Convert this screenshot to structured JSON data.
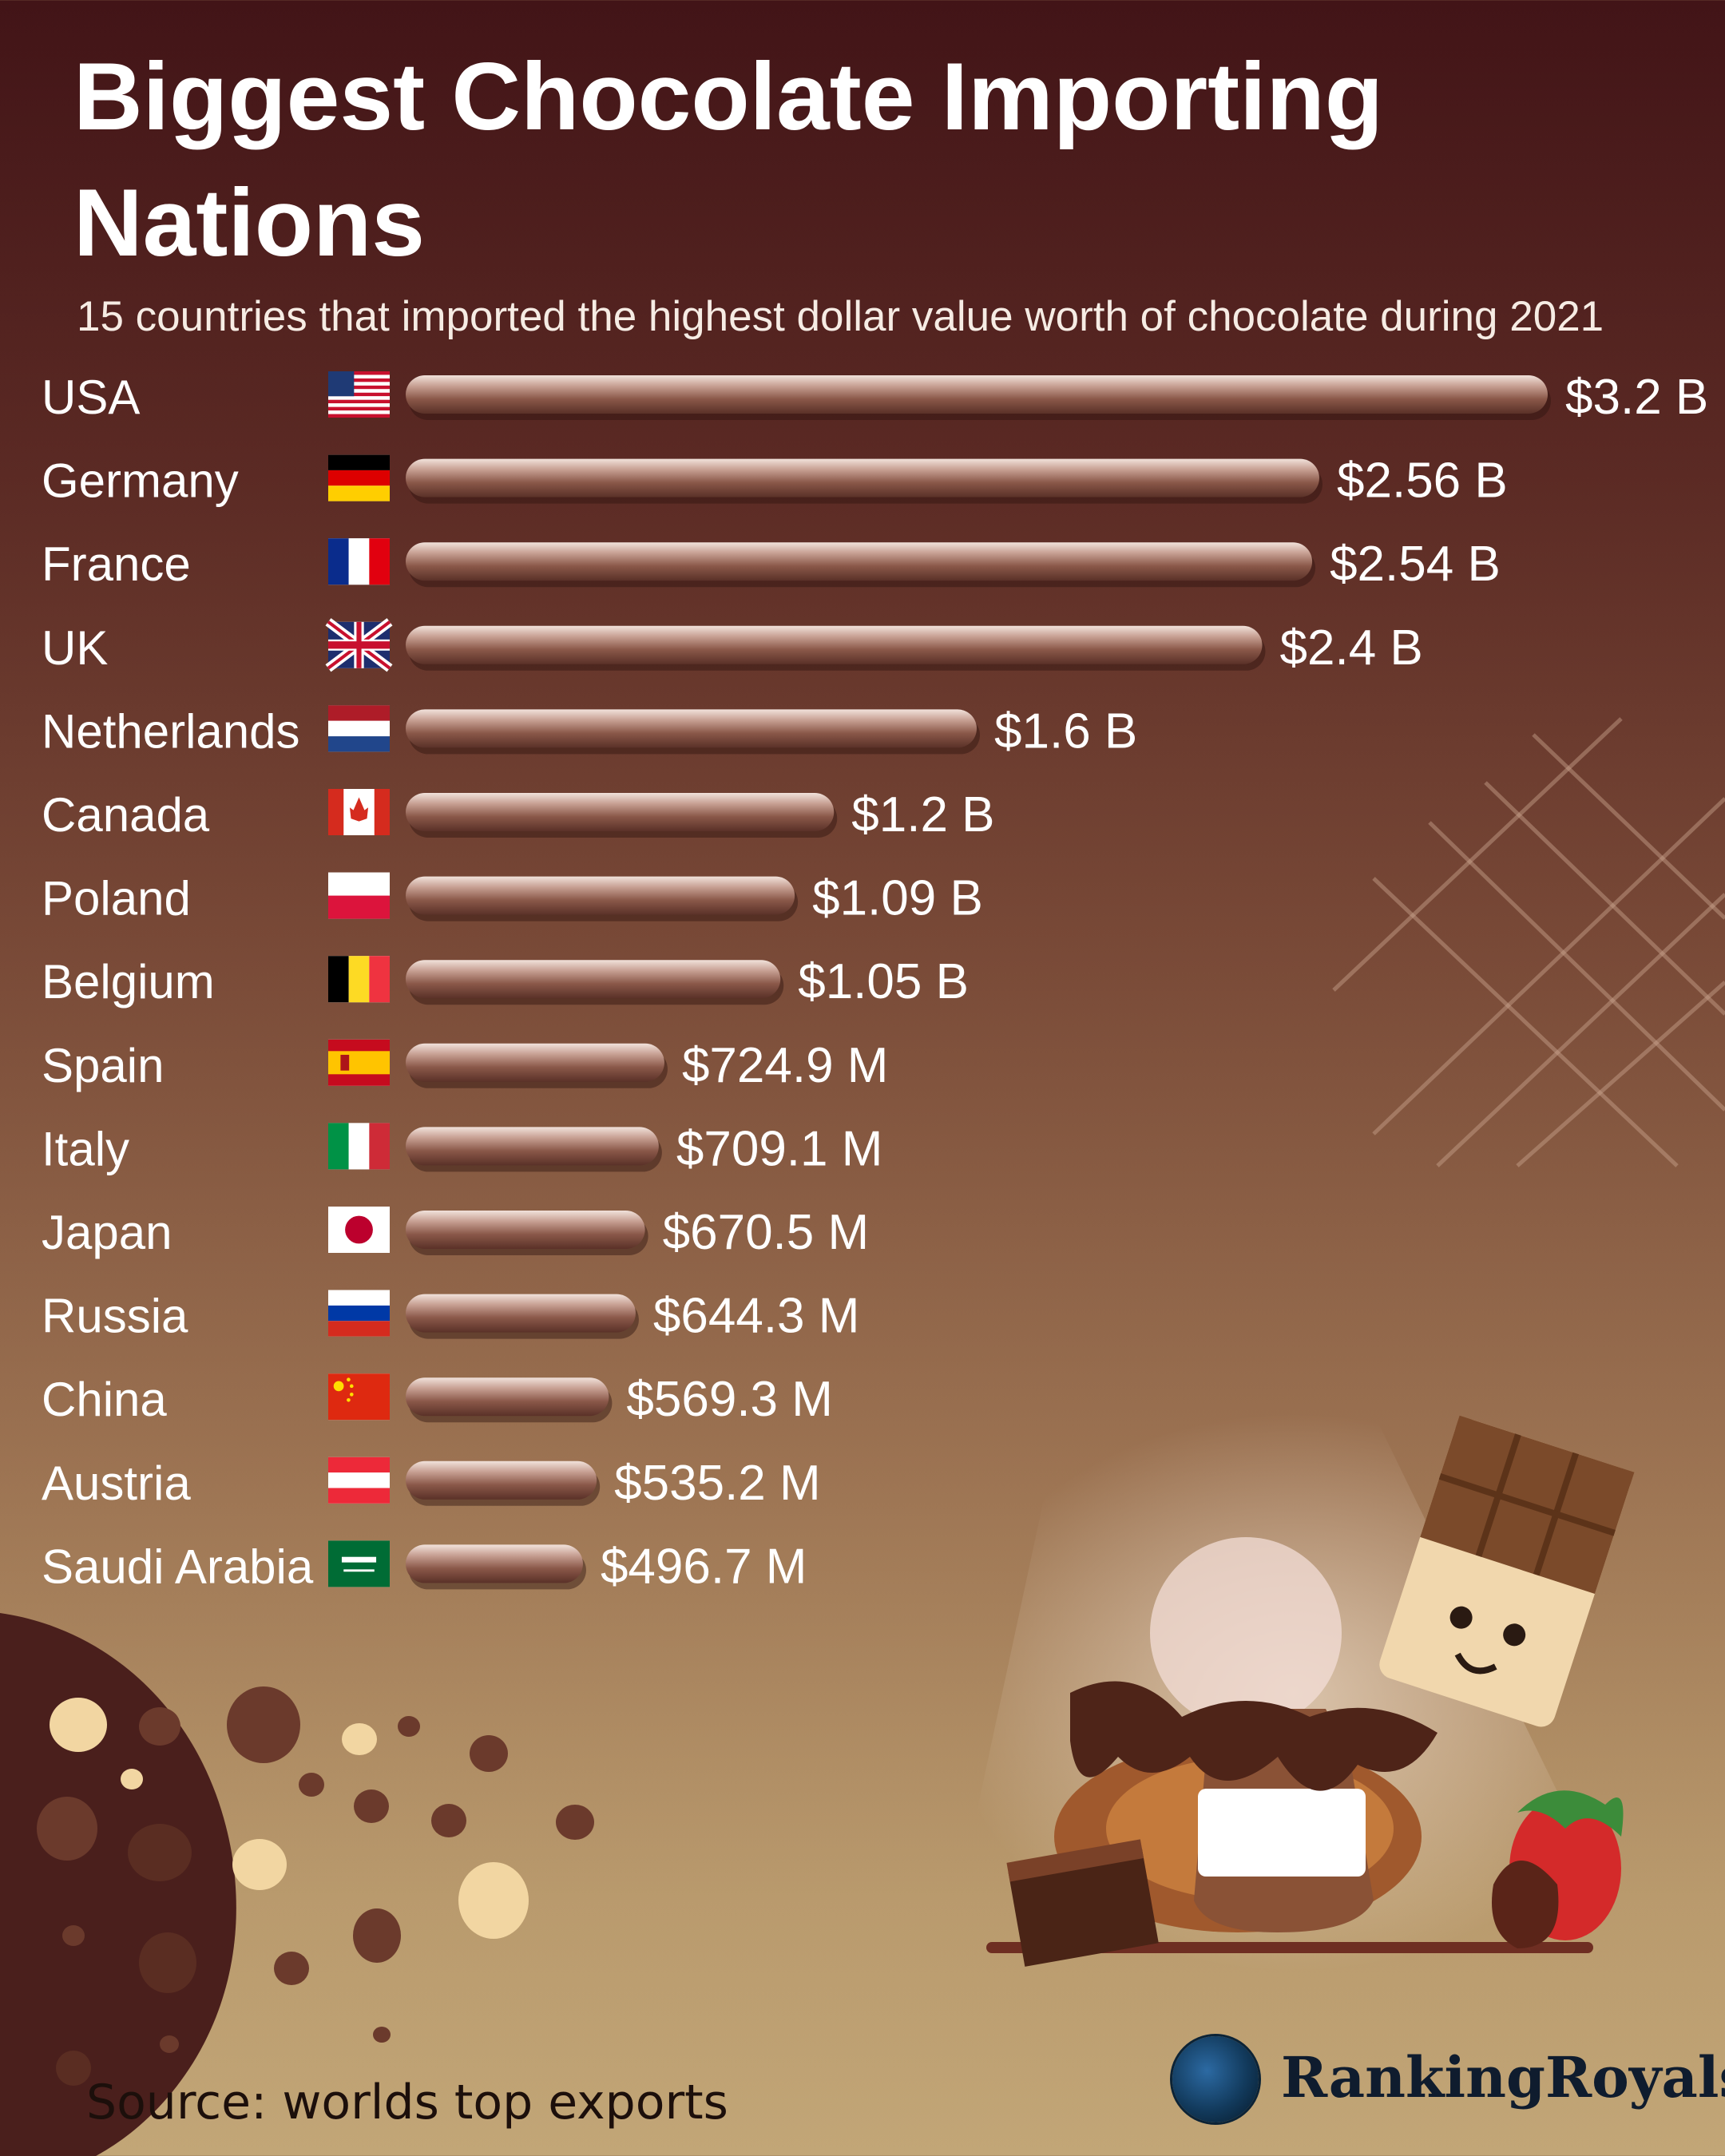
{
  "title": "Biggest Chocolate Importing Nations",
  "subtitle": "15 countries that imported the highest dollar value worth of chocolate during 2021",
  "source": "Source: worlds top exports",
  "brand": "RankingRoyals",
  "colors": {
    "background_top": "#421417",
    "background_bottom": "#c2a677",
    "bar": "#9a6a5c",
    "bar_highlight": "#eddcd5",
    "text": "#ffffff"
  },
  "chart_data": {
    "type": "bar",
    "orientation": "horizontal",
    "title": "Biggest Chocolate Importing Nations",
    "subtitle": "15 countries that imported the highest dollar value worth of chocolate during 2021",
    "unit": "USD",
    "categories": [
      "USA",
      "Germany",
      "France",
      "UK",
      "Netherlands",
      "Canada",
      "Poland",
      "Belgium",
      "Spain",
      "Italy",
      "Japan",
      "Russia",
      "China",
      "Austria",
      "Saudi Arabia"
    ],
    "values": [
      3200000000,
      2560000000,
      2540000000,
      2400000000,
      1600000000,
      1200000000,
      1090000000,
      1050000000,
      724900000,
      709100000,
      670500000,
      644300000,
      569300000,
      535200000,
      496700000
    ],
    "data_labels": [
      "$3.2 B",
      "$2.56 B",
      "$2.54 B",
      "$2.4 B",
      "$1.6 B",
      "$1.2 B",
      "$1.09 B",
      "$1.05 B",
      "$724.9 M",
      "$709.1 M",
      "$670.5 M",
      "$644.3 M",
      "$569.3 M",
      "$535.2 M",
      "$496.7 M"
    ],
    "flags": [
      "usa-flag",
      "germany-flag",
      "france-flag",
      "uk-flag",
      "netherlands-flag",
      "canada-flag",
      "poland-flag",
      "belgium-flag",
      "spain-flag",
      "italy-flag",
      "japan-flag",
      "russia-flag",
      "china-flag",
      "austria-flag",
      "saudi-arabia-flag"
    ],
    "xlabel": "",
    "ylabel": "",
    "grid": false,
    "legend": "none"
  }
}
